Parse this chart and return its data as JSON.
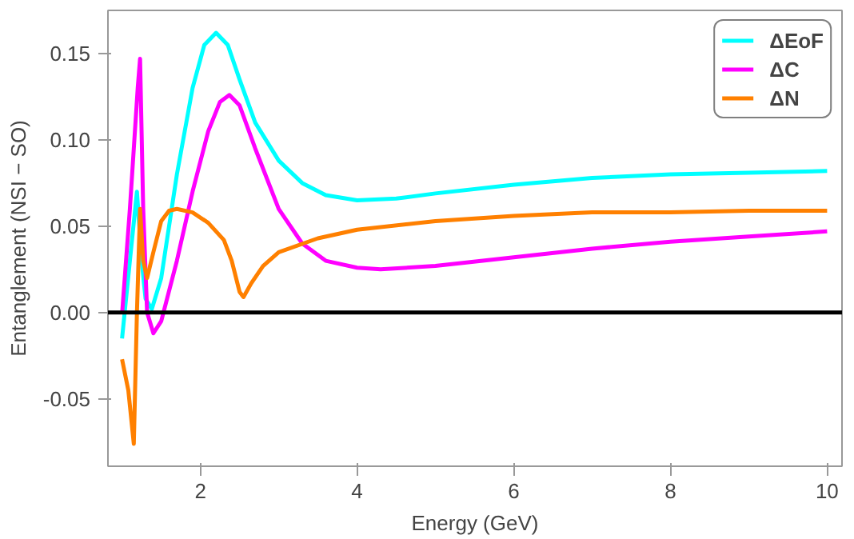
{
  "chart_data": {
    "type": "line",
    "xlabel": "Energy (GeV)",
    "ylabel": "Entanglement (NSI − SO)",
    "xlim": [
      0.82,
      10.19
    ],
    "ylim": [
      -0.089,
      0.175
    ],
    "xticks": [
      2,
      4,
      6,
      8,
      10
    ],
    "yticks": [
      {
        "value": -0.05,
        "label": "-0.05"
      },
      {
        "value": 0,
        "label": "0.00"
      },
      {
        "value": 0.05,
        "label": "0.05"
      },
      {
        "value": 0.1,
        "label": "0.10"
      },
      {
        "value": 0.15,
        "label": "0.15"
      }
    ],
    "grid": false,
    "legend": "top right",
    "line_style": "solid",
    "ref_lines": [
      {
        "axis": "y",
        "value": 0,
        "color": "#000000",
        "line_style": "solid"
      }
    ],
    "series": [
      {
        "name": "ΔEoF",
        "color": "#00ffff",
        "x": [
          1.0,
          1.1,
          1.19,
          1.25,
          1.3,
          1.38,
          1.5,
          1.7,
          1.9,
          2.05,
          2.2,
          2.35,
          2.5,
          2.7,
          3.0,
          3.3,
          3.6,
          4.0,
          4.5,
          5,
          6,
          7,
          8,
          9,
          10
        ],
        "values": [
          -0.015,
          0.03,
          0.07,
          0.03,
          0.008,
          0.002,
          0.02,
          0.08,
          0.13,
          0.155,
          0.162,
          0.155,
          0.135,
          0.11,
          0.088,
          0.075,
          0.068,
          0.065,
          0.066,
          0.069,
          0.074,
          0.078,
          0.08,
          0.081,
          0.082
        ]
      },
      {
        "name": "ΔC",
        "color": "#ff00ff",
        "x": [
          1.0,
          1.1,
          1.2,
          1.23,
          1.27,
          1.32,
          1.4,
          1.5,
          1.7,
          1.9,
          2.1,
          2.25,
          2.37,
          2.5,
          2.7,
          3.0,
          3.3,
          3.6,
          4.0,
          4.3,
          5,
          6,
          7,
          8,
          9,
          10
        ],
        "values": [
          -0.001,
          0.06,
          0.13,
          0.147,
          0.06,
          0.0,
          -0.012,
          -0.005,
          0.03,
          0.07,
          0.105,
          0.122,
          0.126,
          0.12,
          0.095,
          0.06,
          0.04,
          0.03,
          0.026,
          0.025,
          0.027,
          0.032,
          0.037,
          0.041,
          0.044,
          0.047
        ]
      },
      {
        "name": "ΔN",
        "color": "#ff8000",
        "x": [
          1.0,
          1.08,
          1.15,
          1.19,
          1.23,
          1.27,
          1.32,
          1.4,
          1.5,
          1.6,
          1.7,
          1.9,
          2.1,
          2.3,
          2.4,
          2.5,
          2.55,
          2.65,
          2.8,
          3.0,
          3.5,
          4,
          5,
          6,
          7,
          8,
          9,
          10
        ],
        "values": [
          -0.027,
          -0.045,
          -0.076,
          0.0,
          0.06,
          0.03,
          0.02,
          0.035,
          0.053,
          0.059,
          0.06,
          0.058,
          0.052,
          0.042,
          0.03,
          0.012,
          0.009,
          0.017,
          0.027,
          0.035,
          0.043,
          0.048,
          0.053,
          0.056,
          0.058,
          0.058,
          0.059,
          0.059
        ]
      }
    ]
  }
}
